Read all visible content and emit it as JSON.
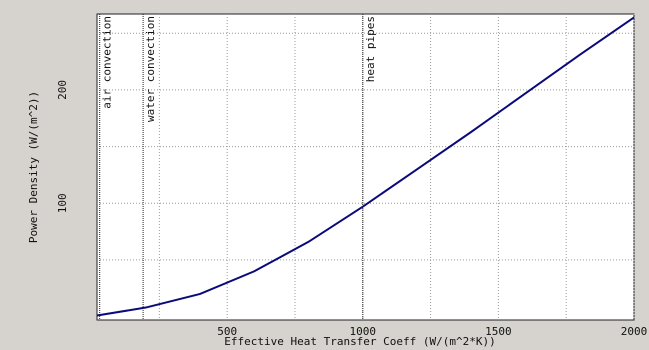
{
  "chart_data": {
    "type": "line",
    "x_label": "Effective Heat Transfer Coeff  (W/(m^2*K))",
    "y_label": "Power Density (W/(m^2))",
    "x": [
      20,
      200,
      400,
      600,
      800,
      1000,
      1200,
      1400,
      1600,
      1800,
      2000
    ],
    "series": [
      {
        "color": "#0a0a7a",
        "values": [
          1,
          8,
          20,
          40,
          66,
          97,
          130,
          163,
          197,
          231,
          264
        ]
      }
    ],
    "xlim": [
      20,
      2000
    ],
    "ylim": [
      -3,
      267
    ],
    "xticks": [
      500,
      1000,
      1500,
      2000
    ],
    "yticks": [
      100,
      200
    ],
    "x_minor_ticks": [
      250,
      750,
      1250,
      1750
    ],
    "y_minor_ticks": [
      50,
      150,
      250
    ],
    "grid": true,
    "annotations": [
      {
        "x": 30,
        "label": "air convection"
      },
      {
        "x": 190,
        "label": "water convection"
      },
      {
        "x": 1000,
        "label": "heat pipes"
      }
    ]
  }
}
